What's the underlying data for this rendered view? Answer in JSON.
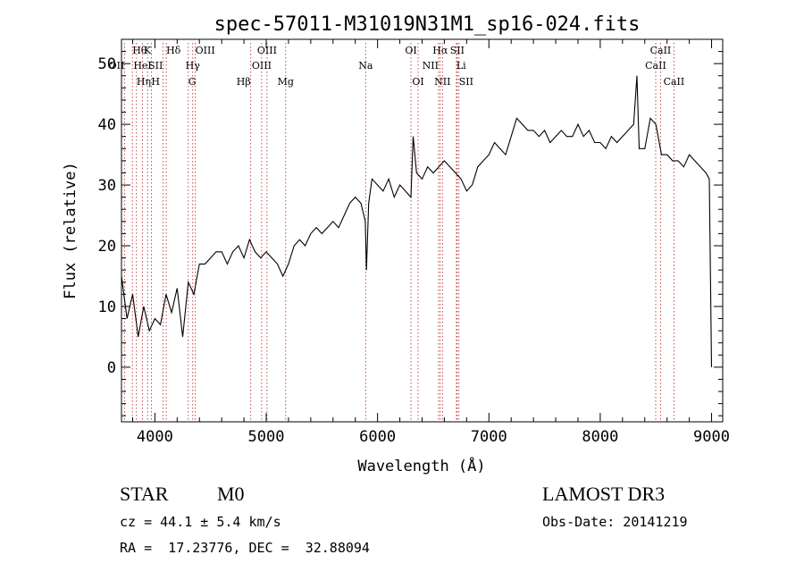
{
  "chart_data": {
    "type": "line",
    "title": "spec-57011-M31019N31M1_sp16-024.fits",
    "xlabel": "Wavelength (Å)",
    "ylabel": "Flux (relative)",
    "xlim": [
      3700,
      9100
    ],
    "ylim": [
      -9,
      54
    ],
    "x_ticks": [
      4000,
      5000,
      6000,
      7000,
      8000,
      9000
    ],
    "y_ticks": [
      0,
      10,
      20,
      30,
      40,
      50
    ],
    "series": [
      {
        "name": "flux",
        "x": [
          3700,
          3750,
          3800,
          3850,
          3900,
          3950,
          4000,
          4050,
          4100,
          4150,
          4200,
          4250,
          4300,
          4350,
          4400,
          4450,
          4500,
          4550,
          4600,
          4650,
          4700,
          4750,
          4800,
          4850,
          4900,
          4950,
          5000,
          5050,
          5100,
          5150,
          5200,
          5250,
          5300,
          5350,
          5400,
          5450,
          5500,
          5550,
          5600,
          5650,
          5700,
          5750,
          5800,
          5850,
          5890,
          5900,
          5920,
          5950,
          6000,
          6050,
          6100,
          6150,
          6200,
          6250,
          6300,
          6320,
          6350,
          6400,
          6450,
          6500,
          6550,
          6600,
          6650,
          6700,
          6750,
          6800,
          6850,
          6900,
          6950,
          7000,
          7050,
          7100,
          7150,
          7200,
          7250,
          7300,
          7350,
          7400,
          7450,
          7500,
          7550,
          7600,
          7650,
          7700,
          7750,
          7800,
          7850,
          7900,
          7950,
          8000,
          8050,
          8100,
          8150,
          8200,
          8250,
          8300,
          8330,
          8350,
          8400,
          8450,
          8500,
          8550,
          8600,
          8650,
          8700,
          8750,
          8800,
          8850,
          8900,
          8950,
          8980,
          9000
        ],
        "y": [
          15,
          8,
          12,
          5,
          10,
          6,
          8,
          7,
          12,
          9,
          13,
          5,
          14,
          12,
          17,
          17,
          18,
          19,
          19,
          17,
          19,
          20,
          18,
          21,
          19,
          18,
          19,
          18,
          17,
          15,
          17,
          20,
          21,
          20,
          22,
          23,
          22,
          23,
          24,
          23,
          25,
          27,
          28,
          27,
          24,
          16,
          27,
          31,
          30,
          29,
          31,
          28,
          30,
          29,
          28,
          38,
          32,
          31,
          33,
          32,
          33,
          34,
          33,
          32,
          31,
          29,
          30,
          33,
          34,
          35,
          37,
          36,
          35,
          38,
          41,
          40,
          39,
          39,
          38,
          39,
          37,
          38,
          39,
          38,
          38,
          40,
          38,
          39,
          37,
          37,
          36,
          38,
          37,
          38,
          39,
          40,
          48,
          36,
          36,
          41,
          40,
          35,
          35,
          34,
          34,
          33,
          35,
          34,
          33,
          32,
          31,
          0
        ]
      }
    ],
    "spectral_lines": [
      {
        "wl": 3727,
        "label": "OII",
        "row": 1,
        "side": "left"
      },
      {
        "wl": 3798,
        "label": "Hθ",
        "row": 0,
        "side": "right"
      },
      {
        "wl": 3835,
        "label": "Hη",
        "row": 2,
        "side": "right"
      },
      {
        "wl": 3889,
        "label": "HeI",
        "row": 1,
        "side": "center"
      },
      {
        "wl": 3934,
        "label": "K",
        "row": 0,
        "side": "center"
      },
      {
        "wl": 3968,
        "label": "H",
        "row": 2,
        "side": "right"
      },
      {
        "wl": 4072,
        "label": "SII",
        "row": 1,
        "side": "left"
      },
      {
        "wl": 4102,
        "label": "Hδ",
        "row": 0,
        "side": "right"
      },
      {
        "wl": 4300,
        "label": "G",
        "row": 2,
        "side": "right"
      },
      {
        "wl": 4340,
        "label": "Hγ",
        "row": 1,
        "side": "center"
      },
      {
        "wl": 4363,
        "label": "OIII",
        "row": 0,
        "side": "right"
      },
      {
        "wl": 4861,
        "label": "Hβ",
        "row": 2,
        "side": "left"
      },
      {
        "wl": 4959,
        "label": "OIII",
        "row": 1,
        "side": "center"
      },
      {
        "wl": 5007,
        "label": "OIII",
        "row": 0,
        "side": "center"
      },
      {
        "wl": 5175,
        "label": "Mg",
        "row": 2,
        "side": "center"
      },
      {
        "wl": 5893,
        "label": "Na",
        "row": 1,
        "side": "center"
      },
      {
        "wl": 6300,
        "label": "OI",
        "row": 0,
        "side": "center"
      },
      {
        "wl": 6364,
        "label": "OI",
        "row": 2,
        "side": "center"
      },
      {
        "wl": 6548,
        "label": "NII",
        "row": 1,
        "side": "left"
      },
      {
        "wl": 6563,
        "label": "Hα",
        "row": 0,
        "side": "center"
      },
      {
        "wl": 6583,
        "label": "NII",
        "row": 2,
        "side": "center"
      },
      {
        "wl": 6708,
        "label": "Li",
        "row": 1,
        "side": "right"
      },
      {
        "wl": 6716,
        "label": "SII",
        "row": 0,
        "side": "center"
      },
      {
        "wl": 6731,
        "label": "SII",
        "row": 2,
        "side": "right"
      },
      {
        "wl": 8498,
        "label": "CaII",
        "row": 1,
        "side": "center"
      },
      {
        "wl": 8542,
        "label": "CaII",
        "row": 0,
        "side": "center"
      },
      {
        "wl": 8662,
        "label": "CaII",
        "row": 2,
        "side": "center"
      }
    ]
  },
  "info": {
    "object_class": "STAR",
    "subclass": "M0",
    "survey": "LAMOST DR3",
    "redshift": "cz = 44.1 ± 5.4 km/s",
    "obs_date": "Obs-Date: 20141219",
    "coords": "RA =  17.23776, DEC =  32.88094"
  }
}
